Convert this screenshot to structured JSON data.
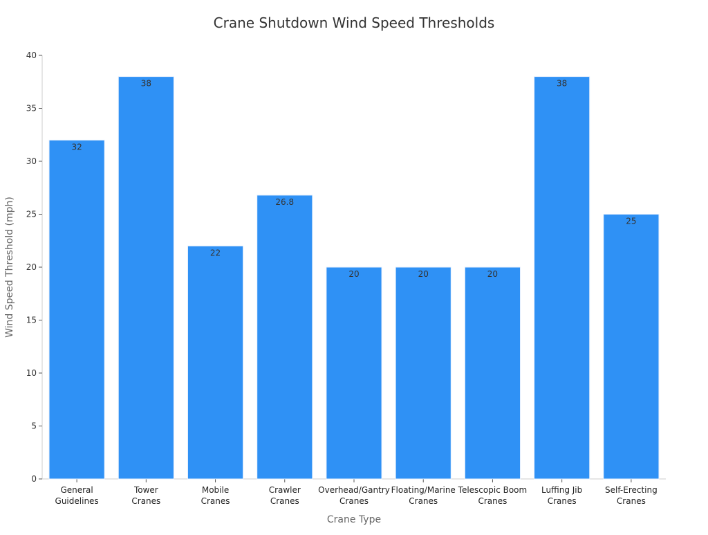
{
  "chart_data": {
    "type": "bar",
    "title": "Crane Shutdown Wind Speed Thresholds",
    "xlabel": "Crane Type",
    "ylabel": "Wind Speed Threshold (mph)",
    "categories": [
      [
        "General",
        "Guidelines"
      ],
      [
        "Tower",
        "Cranes"
      ],
      [
        "Mobile",
        "Cranes"
      ],
      [
        "Crawler",
        "Cranes"
      ],
      [
        "Overhead/Gantry",
        "Cranes"
      ],
      [
        "Floating/Marine",
        "Cranes"
      ],
      [
        "Telescopic Boom",
        "Cranes"
      ],
      [
        "Luffing Jib",
        "Cranes"
      ],
      [
        "Self-Erecting",
        "Cranes"
      ]
    ],
    "values": [
      32,
      38,
      22,
      26.8,
      20,
      20,
      20,
      38,
      25
    ],
    "value_labels": [
      "32",
      "38",
      "22",
      "26.8",
      "20",
      "20",
      "20",
      "38",
      "25"
    ],
    "ylim": [
      0,
      40
    ],
    "yticks": [
      0,
      5,
      10,
      15,
      20,
      25,
      30,
      35,
      40
    ],
    "grid": false,
    "legend": "none",
    "bar_color": "#2f91f5"
  }
}
